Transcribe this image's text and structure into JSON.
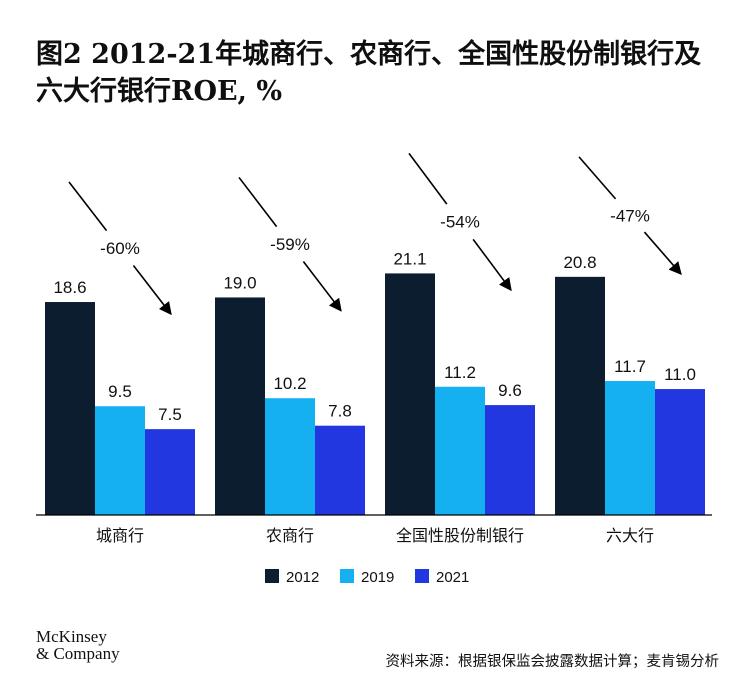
{
  "title": "图2 2012-21年城商行、农商行、全国性股份制银行及六大行银行ROE, %",
  "chart_data": {
    "type": "bar",
    "title": "图2 2012-21年城商行、农商行、全国性股份制银行及六大行银行ROE, %",
    "categories": [
      "城商行",
      "农商行",
      "全国性股份制银行",
      "六大行"
    ],
    "series": [
      {
        "name": "2012",
        "values": [
          18.6,
          19.0,
          21.1,
          20.8
        ],
        "color": "#0b1d2e"
      },
      {
        "name": "2019",
        "values": [
          9.5,
          10.2,
          11.2,
          11.7
        ],
        "color": "#15b0f0"
      },
      {
        "name": "2021",
        "values": [
          7.5,
          7.8,
          9.6,
          11.0
        ],
        "color": "#2237e0"
      }
    ],
    "value_labels": [
      [
        "18.6",
        "9.5",
        "7.5"
      ],
      [
        "19.0",
        "10.2",
        "7.8"
      ],
      [
        "21.1",
        "11.2",
        "9.6"
      ],
      [
        "20.8",
        "11.7",
        "11.0"
      ]
    ],
    "annotations": [
      "-60%",
      "-59%",
      "-54%",
      "-47%"
    ],
    "ylim": [
      0,
      30
    ],
    "grid": false,
    "legend_position": "bottom-center"
  },
  "footer": {
    "logo_line1": "McKinsey",
    "logo_line2": "& Company",
    "source": "资料来源：根据银保监会披露数据计算；麦肯锡分析"
  }
}
